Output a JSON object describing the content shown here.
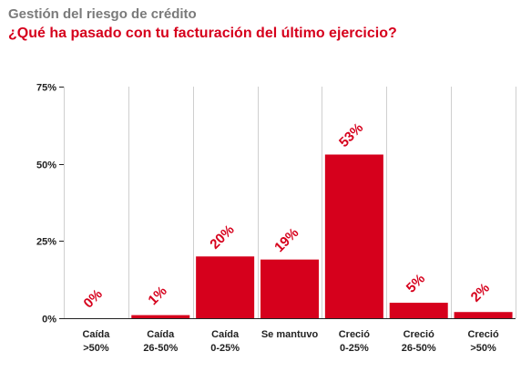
{
  "header": {
    "subtitle": "Gestión del riesgo de crédito",
    "title": "¿Qué ha pasado con tu facturación del último ejercicio?"
  },
  "colors": {
    "bar": "#d6001c",
    "label": "#d6001c",
    "subtitle": "#7a7a7a",
    "grid": "#cfcfcf",
    "axis": "#222222",
    "text": "#222222"
  },
  "chart_data": {
    "type": "bar",
    "title": "¿Qué ha pasado con tu facturación del último ejercicio?",
    "categories": [
      [
        "Caída",
        ">50%"
      ],
      [
        "Caída",
        "26-50%"
      ],
      [
        "Caída",
        "0-25%"
      ],
      [
        "Se mantuvo"
      ],
      [
        "Creció",
        "0-25%"
      ],
      [
        "Creció",
        "26-50%"
      ],
      [
        "Creció",
        ">50%"
      ]
    ],
    "values": [
      0,
      1,
      20,
      19,
      53,
      5,
      2
    ],
    "data_labels": [
      "0%",
      "1%",
      "20%",
      "19%",
      "53%",
      "5%",
      "2%"
    ],
    "yticks": [
      0,
      25,
      50,
      75
    ],
    "ytick_labels": [
      "0%",
      "25%",
      "50%",
      "75%"
    ],
    "ylim": [
      0,
      75
    ],
    "xlabel": "",
    "ylabel": "",
    "grid": "vertical separators",
    "legend": "none"
  }
}
